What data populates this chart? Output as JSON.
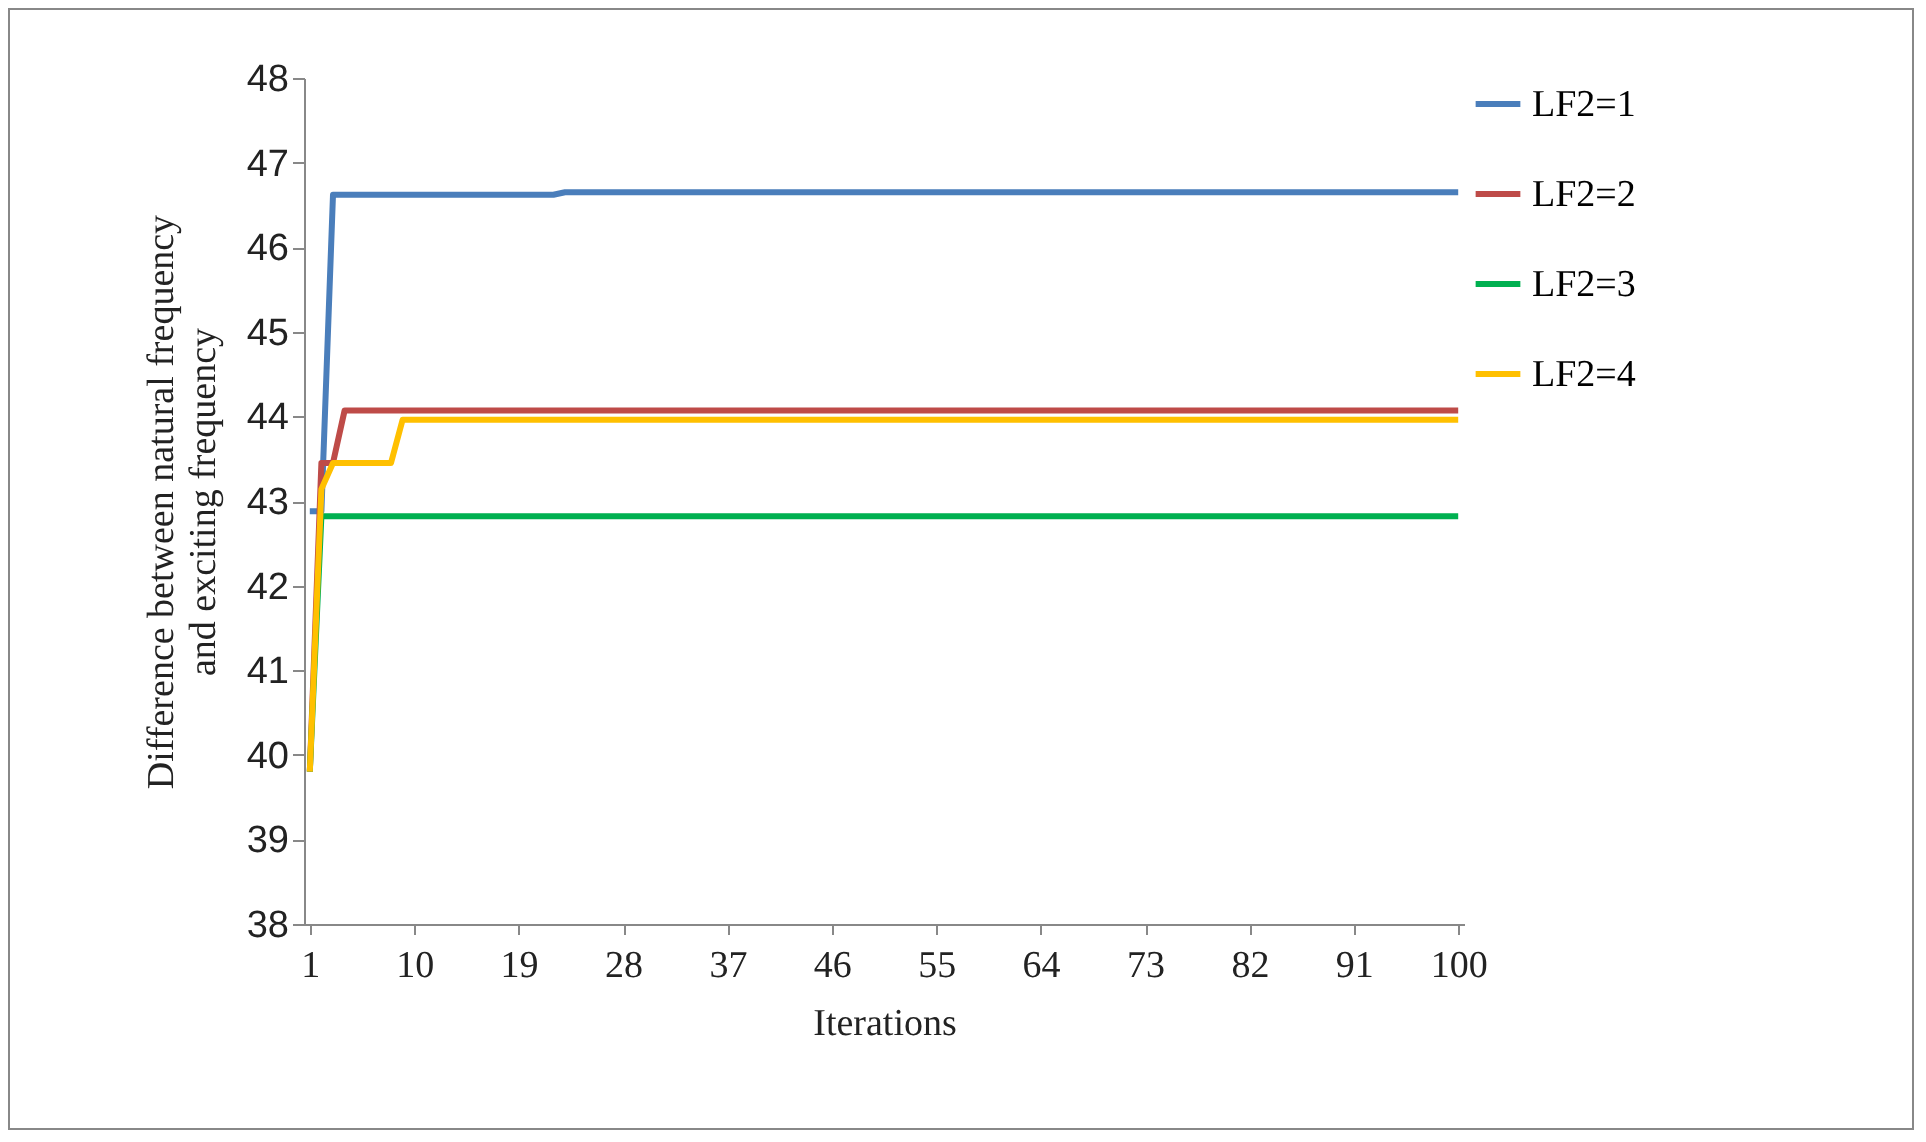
{
  "chart_data": {
    "type": "line",
    "xlabel": "Iterations",
    "ylabel": "Difference between natural frequency\nand exciting frequency",
    "xlim": [
      0.5,
      100.5
    ],
    "xticks": [
      1,
      10,
      19,
      28,
      37,
      46,
      55,
      64,
      73,
      82,
      91,
      100
    ],
    "ylim": [
      38,
      48
    ],
    "yticks": [
      38,
      39,
      40,
      41,
      42,
      43,
      44,
      45,
      46,
      47,
      48
    ],
    "grid": false,
    "legend": "right",
    "marker": "none",
    "line_style": "solid",
    "series": [
      {
        "name": "LF2=1",
        "color": "#4a7ebb",
        "x": [
          1,
          2,
          3,
          22,
          23,
          100
        ],
        "values": [
          42.88,
          42.88,
          46.62,
          46.62,
          46.65,
          46.65
        ]
      },
      {
        "name": "LF2=2",
        "color": "#be4b48",
        "x": [
          1,
          2,
          3,
          4,
          100
        ],
        "values": [
          39.8,
          43.45,
          43.45,
          44.07,
          44.07
        ]
      },
      {
        "name": "LF2=3",
        "color": "#00b050",
        "x": [
          1,
          2,
          100
        ],
        "values": [
          39.8,
          42.82,
          42.82
        ]
      },
      {
        "name": "LF2=4",
        "color": "#ffc000",
        "x": [
          1,
          2,
          3,
          8,
          9,
          100
        ],
        "values": [
          39.8,
          43.14,
          43.45,
          43.45,
          43.96,
          43.96
        ]
      }
    ]
  }
}
